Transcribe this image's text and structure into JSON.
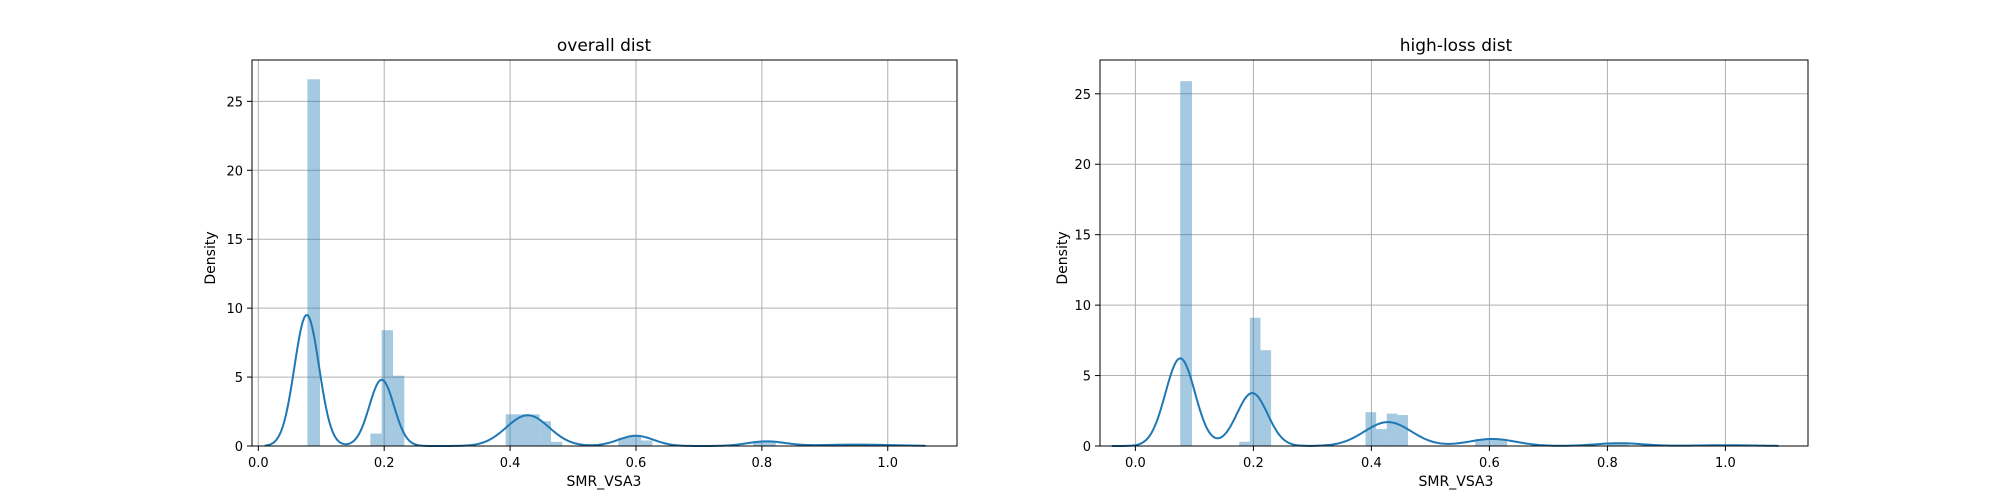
{
  "figure": {
    "background": "#ffffff"
  },
  "colors": {
    "hist": "#1f77b4",
    "hist_opacity": 0.4,
    "kde": "#1f77b4",
    "grid": "#b0b0b0",
    "spine": "#000000"
  },
  "chart_data": [
    {
      "type": "histogram",
      "title": "overall dist",
      "xlabel": "SMR_VSA3",
      "ylabel": "Density",
      "xlim": [
        -0.01,
        1.11
      ],
      "ylim": [
        0,
        28
      ],
      "xticks": [
        0.0,
        0.2,
        0.4,
        0.6,
        0.8,
        1.0
      ],
      "xtick_labels": [
        "0.0",
        "0.2",
        "0.4",
        "0.6",
        "0.8",
        "1.0"
      ],
      "yticks": [
        0,
        5,
        10,
        15,
        20,
        25
      ],
      "ytick_labels": [
        "0",
        "5",
        "10",
        "15",
        "20",
        "25"
      ],
      "grid": true,
      "bins": [
        {
          "x0": 0.078,
          "x1": 0.098,
          "density": 26.6
        },
        {
          "x0": 0.178,
          "x1": 0.196,
          "density": 0.9
        },
        {
          "x0": 0.196,
          "x1": 0.214,
          "density": 8.4
        },
        {
          "x0": 0.214,
          "x1": 0.232,
          "density": 5.1
        },
        {
          "x0": 0.393,
          "x1": 0.411,
          "density": 2.3
        },
        {
          "x0": 0.411,
          "x1": 0.429,
          "density": 2.3
        },
        {
          "x0": 0.429,
          "x1": 0.447,
          "density": 2.3
        },
        {
          "x0": 0.447,
          "x1": 0.465,
          "density": 1.8
        },
        {
          "x0": 0.465,
          "x1": 0.483,
          "density": 0.3
        },
        {
          "x0": 0.572,
          "x1": 0.59,
          "density": 0.6
        },
        {
          "x0": 0.59,
          "x1": 0.608,
          "density": 0.8
        },
        {
          "x0": 0.608,
          "x1": 0.626,
          "density": 0.4
        },
        {
          "x0": 0.786,
          "x1": 0.804,
          "density": 0.3
        },
        {
          "x0": 0.804,
          "x1": 0.822,
          "density": 0.3
        },
        {
          "x0": 0.93,
          "x1": 0.948,
          "density": 0.1
        }
      ],
      "kde": [
        {
          "mu": 0.077,
          "sigma": 0.0195,
          "w": 0.465
        },
        {
          "mu": 0.196,
          "sigma": 0.0195,
          "w": 0.235
        },
        {
          "mu": 0.428,
          "sigma": 0.034,
          "w": 0.19
        },
        {
          "mu": 0.6,
          "sigma": 0.028,
          "w": 0.052
        },
        {
          "mu": 0.807,
          "sigma": 0.03,
          "w": 0.025
        },
        {
          "mu": 0.95,
          "sigma": 0.06,
          "w": 0.015
        }
      ],
      "kde_range": [
        0.01,
        1.06
      ]
    },
    {
      "type": "histogram",
      "title": "high-loss dist",
      "xlabel": "SMR_VSA3",
      "ylabel": "Density",
      "xlim": [
        -0.06,
        1.14
      ],
      "ylim": [
        0,
        27.4
      ],
      "xticks": [
        0.0,
        0.2,
        0.4,
        0.6,
        0.8,
        1.0
      ],
      "xtick_labels": [
        "0.0",
        "0.2",
        "0.4",
        "0.6",
        "0.8",
        "1.0"
      ],
      "yticks": [
        0,
        5,
        10,
        15,
        20,
        25
      ],
      "ytick_labels": [
        "0",
        "5",
        "10",
        "15",
        "20",
        "25"
      ],
      "grid": true,
      "bins": [
        {
          "x0": 0.076,
          "x1": 0.096,
          "density": 25.9
        },
        {
          "x0": 0.176,
          "x1": 0.194,
          "density": 0.3
        },
        {
          "x0": 0.194,
          "x1": 0.212,
          "density": 9.1
        },
        {
          "x0": 0.212,
          "x1": 0.23,
          "density": 6.8
        },
        {
          "x0": 0.39,
          "x1": 0.408,
          "density": 2.4
        },
        {
          "x0": 0.408,
          "x1": 0.426,
          "density": 1.2
        },
        {
          "x0": 0.426,
          "x1": 0.444,
          "density": 2.3
        },
        {
          "x0": 0.444,
          "x1": 0.462,
          "density": 2.2
        },
        {
          "x0": 0.576,
          "x1": 0.594,
          "density": 0.5
        },
        {
          "x0": 0.594,
          "x1": 0.612,
          "density": 0.5
        },
        {
          "x0": 0.612,
          "x1": 0.63,
          "density": 0.5
        },
        {
          "x0": 0.8,
          "x1": 0.818,
          "density": 0.2
        },
        {
          "x0": 0.818,
          "x1": 0.836,
          "density": 0.2
        }
      ],
      "kde": [
        {
          "mu": 0.076,
          "sigma": 0.025,
          "w": 0.39
        },
        {
          "mu": 0.198,
          "sigma": 0.026,
          "w": 0.245
        },
        {
          "mu": 0.428,
          "sigma": 0.04,
          "w": 0.17
        },
        {
          "mu": 0.605,
          "sigma": 0.04,
          "w": 0.05
        },
        {
          "mu": 0.82,
          "sigma": 0.04,
          "w": 0.02
        },
        {
          "mu": 1.0,
          "sigma": 0.05,
          "w": 0.007
        }
      ],
      "kde_range": [
        -0.04,
        1.09
      ]
    }
  ]
}
